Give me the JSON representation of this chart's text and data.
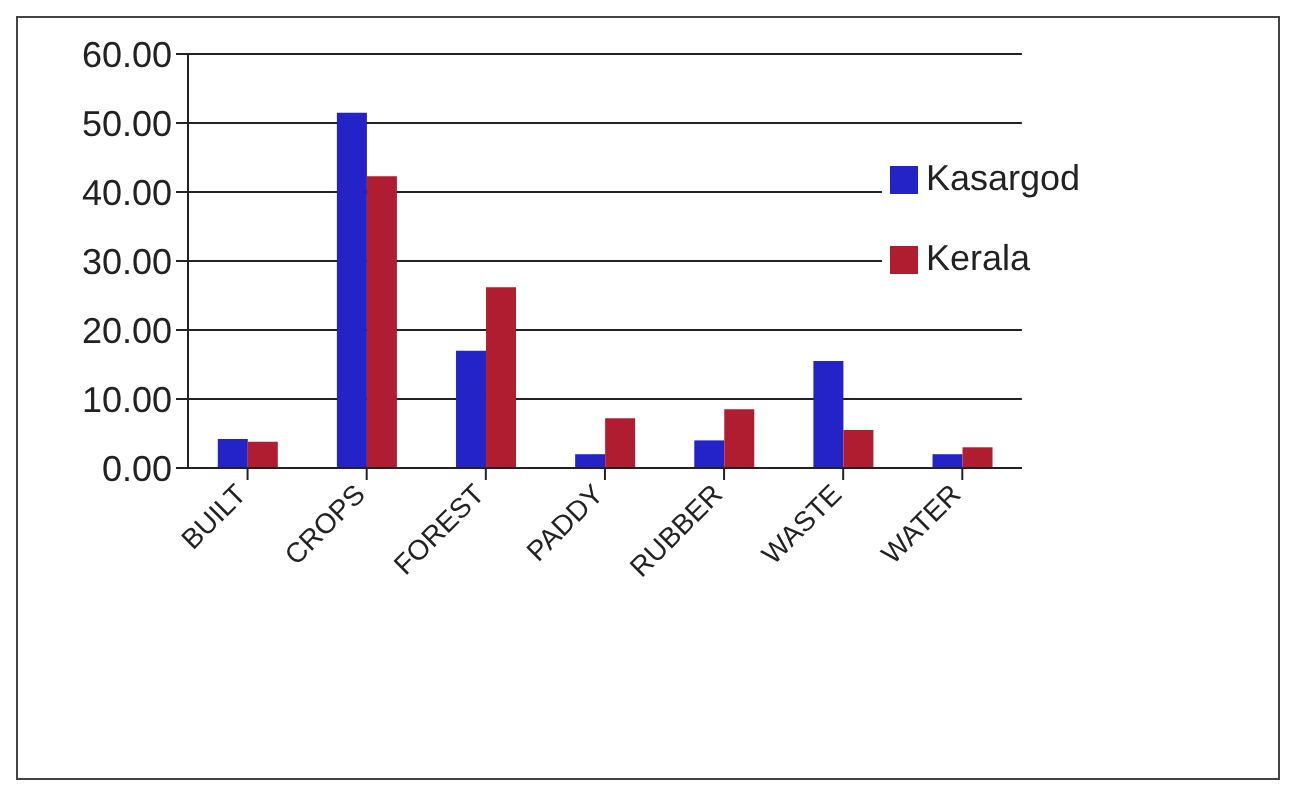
{
  "chart_data": {
    "type": "bar",
    "categories": [
      "BUILT",
      "CROPS",
      "FOREST",
      "PADDY",
      "RUBBER",
      "WASTE",
      "WATER"
    ],
    "series": [
      {
        "name": "Kasargod",
        "color": "#2323c8",
        "values": [
          4.2,
          51.5,
          17.0,
          2.0,
          4.0,
          15.5,
          2.0
        ]
      },
      {
        "name": "Kerala",
        "color": "#b01c30",
        "values": [
          3.8,
          42.3,
          26.2,
          7.2,
          8.5,
          5.5,
          3.0
        ]
      }
    ],
    "ylim": [
      0,
      60
    ],
    "yticks": [
      {
        "value": 0,
        "label": "0.00"
      },
      {
        "value": 10,
        "label": "10.00"
      },
      {
        "value": 20,
        "label": "20.00"
      },
      {
        "value": 30,
        "label": "30.00"
      },
      {
        "value": 40,
        "label": "40.00"
      },
      {
        "value": 50,
        "label": "50.00"
      },
      {
        "value": 60,
        "label": "60.00"
      }
    ],
    "grid": "y",
    "legend": "top right"
  }
}
